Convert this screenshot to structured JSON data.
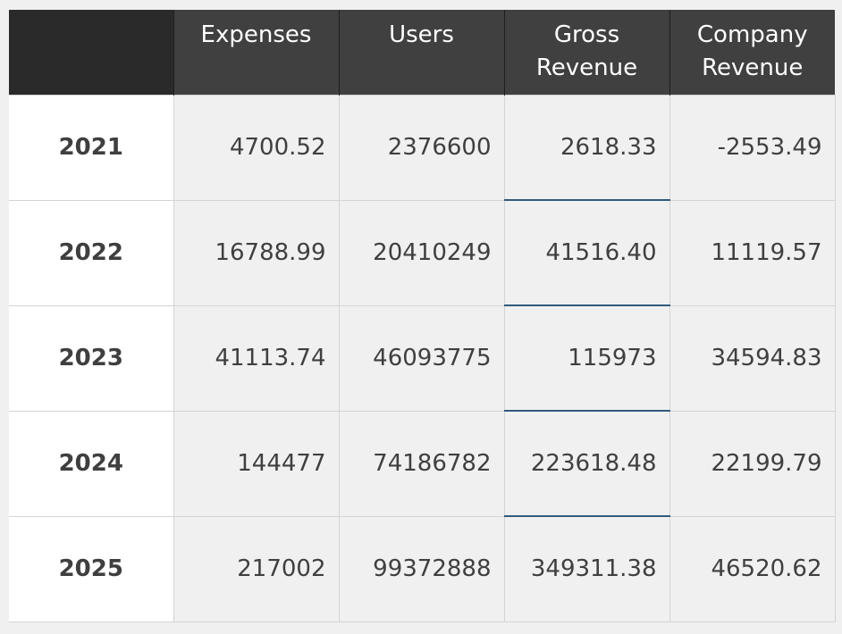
{
  "chart_data": {
    "type": "table",
    "columns": [
      "",
      "Expenses",
      "Users",
      "Gross\nRevenue",
      "Company\nRevenue"
    ],
    "rows": [
      {
        "label": "2021",
        "values": [
          "4700.52",
          "2376600",
          "2618.33",
          "-2553.49"
        ]
      },
      {
        "label": "2022",
        "values": [
          "16788.99",
          "20410249",
          "41516.40",
          "11119.57"
        ]
      },
      {
        "label": "2023",
        "values": [
          "41113.74",
          "46093775",
          "115973",
          "34594.83"
        ]
      },
      {
        "label": "2024",
        "values": [
          "144477",
          "74186782",
          "223618.48",
          "22199.79"
        ]
      },
      {
        "label": "2025",
        "values": [
          "217002",
          "99372888",
          "349311.38",
          "46520.62"
        ]
      }
    ]
  },
  "colors": {
    "header_bg": "#404040",
    "corner_bg": "#2a2a2a",
    "cell_bg": "#f0f0f0",
    "row_header_bg": "#ffffff",
    "text": "#3f3f3f",
    "accent_separator": "#2f5a7d"
  }
}
